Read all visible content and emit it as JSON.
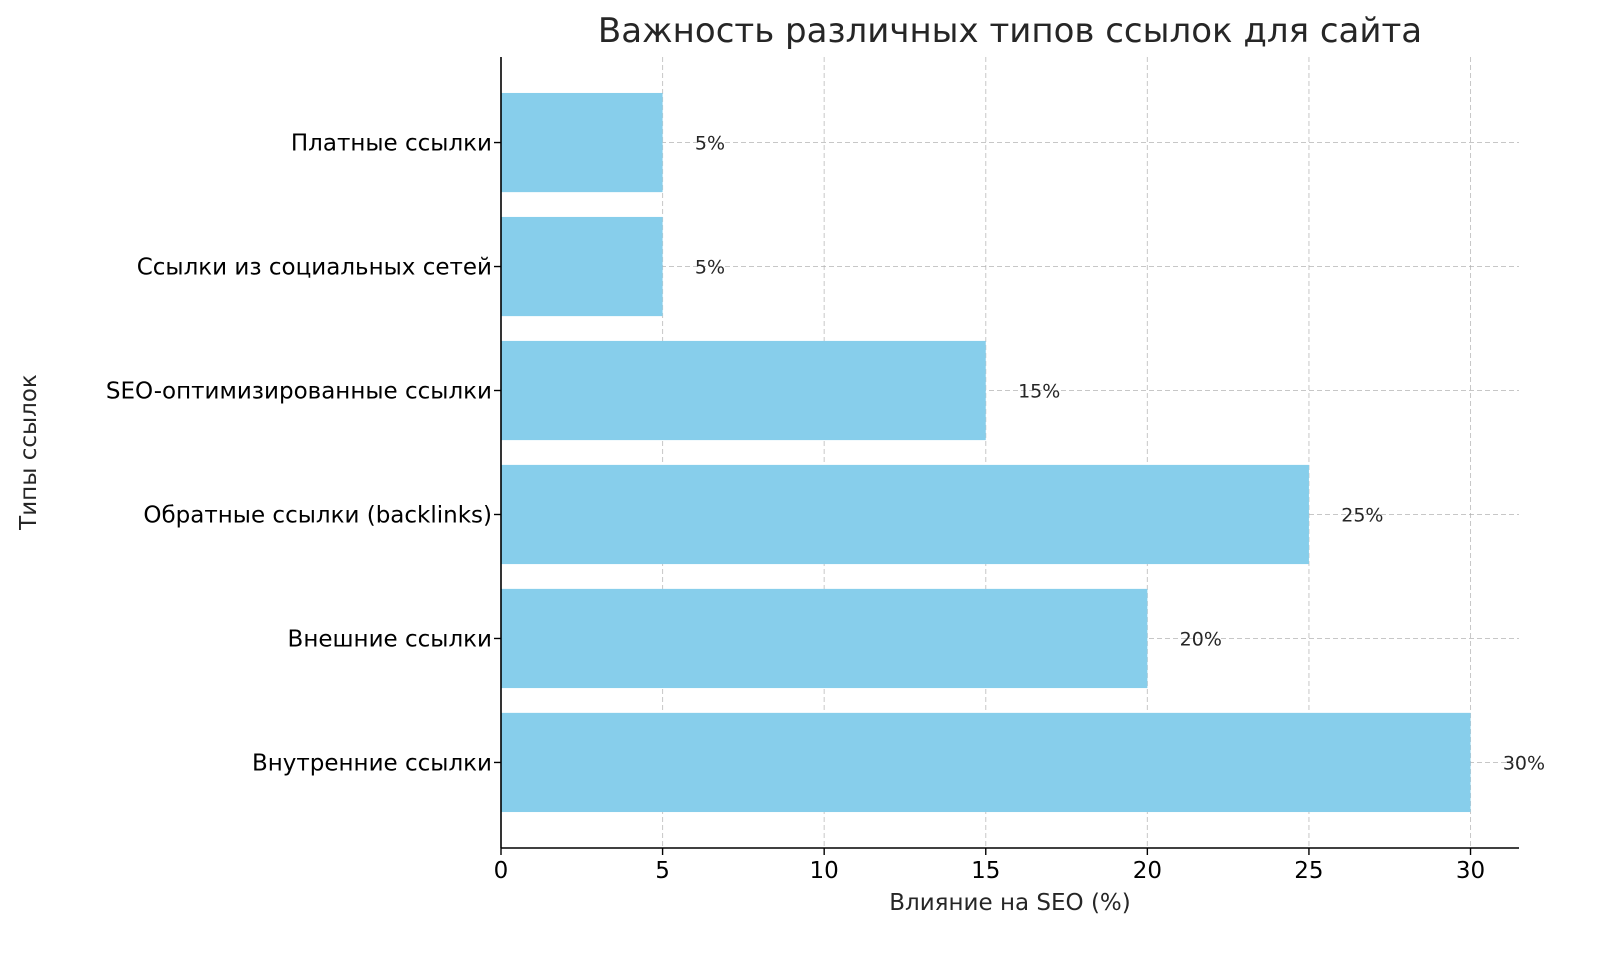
{
  "chart_data": {
    "type": "bar",
    "orientation": "horizontal",
    "title": "Важность различных типов ссылок для сайта",
    "xlabel": "Влияние на SEO (%)",
    "ylabel": "Типы ссылок",
    "categories": [
      "Внутренние ссылки",
      "Внешние ссылки",
      "Обратные ссылки (backlinks)",
      "SEO-оптимизированные ссылки",
      "Ссылки из социальных сетей",
      "Платные ссылки"
    ],
    "values": [
      30,
      20,
      25,
      15,
      5,
      5
    ],
    "data_labels": [
      "30%",
      "20%",
      "25%",
      "15%",
      "5%",
      "5%"
    ],
    "xlim": [
      0,
      31.5
    ],
    "xticks": [
      0,
      5,
      10,
      15,
      20,
      25,
      30
    ],
    "xtick_labels": [
      "0",
      "5",
      "10",
      "15",
      "20",
      "25",
      "30"
    ],
    "grid": true,
    "grid_style": "dashed",
    "bar_color": "#87ceeb"
  }
}
